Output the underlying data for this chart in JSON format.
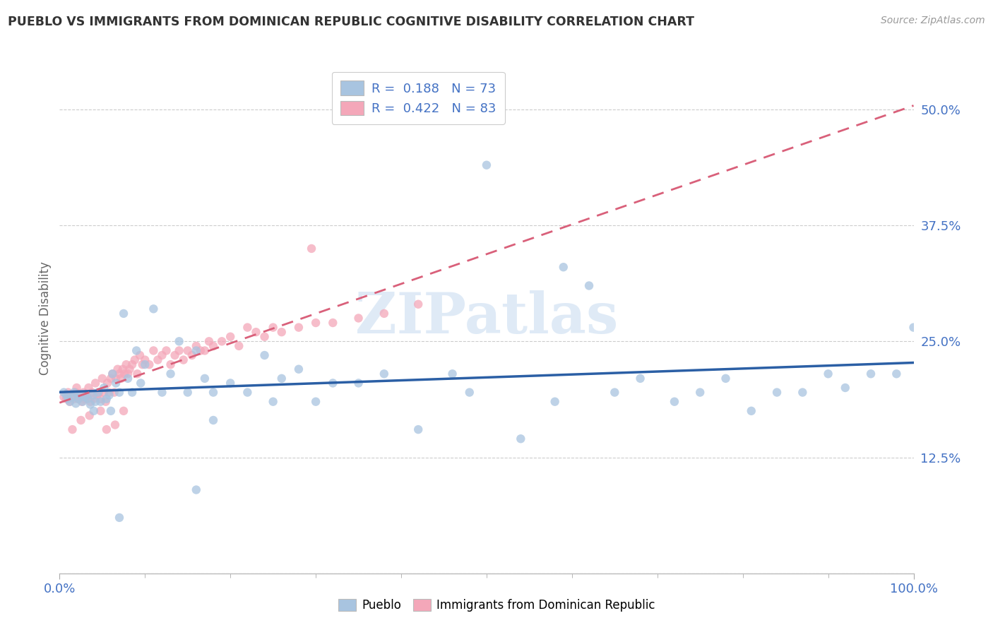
{
  "title": "PUEBLO VS IMMIGRANTS FROM DOMINICAN REPUBLIC COGNITIVE DISABILITY CORRELATION CHART",
  "source_text": "Source: ZipAtlas.com",
  "ylabel": "Cognitive Disability",
  "pueblo_R": 0.188,
  "pueblo_N": 73,
  "dr_R": 0.422,
  "dr_N": 83,
  "pueblo_color": "#a8c4e0",
  "dr_color": "#f4a7b9",
  "pueblo_line_color": "#2b5fa5",
  "dr_line_color": "#d9607a",
  "background_color": "#ffffff",
  "watermark": "ZIPatlas",
  "xlim": [
    0.0,
    1.0
  ],
  "ylim": [
    0.0,
    0.55
  ],
  "ytick_vals": [
    0.0,
    0.125,
    0.25,
    0.375,
    0.5
  ],
  "ytick_labels": [
    "",
    "12.5%",
    "25.0%",
    "37.5%",
    "50.0%"
  ],
  "pueblo_x": [
    0.005,
    0.008,
    0.01,
    0.012,
    0.015,
    0.017,
    0.019,
    0.022,
    0.024,
    0.027,
    0.03,
    0.033,
    0.036,
    0.039,
    0.042,
    0.045,
    0.048,
    0.052,
    0.055,
    0.058,
    0.062,
    0.066,
    0.07,
    0.075,
    0.08,
    0.085,
    0.09,
    0.095,
    0.1,
    0.11,
    0.12,
    0.13,
    0.14,
    0.15,
    0.16,
    0.17,
    0.18,
    0.2,
    0.22,
    0.24,
    0.26,
    0.28,
    0.3,
    0.32,
    0.35,
    0.38,
    0.42,
    0.46,
    0.5,
    0.54,
    0.58,
    0.62,
    0.65,
    0.68,
    0.72,
    0.75,
    0.78,
    0.81,
    0.84,
    0.87,
    0.9,
    0.92,
    0.95,
    0.98,
    1.0,
    0.04,
    0.06,
    0.18,
    0.25,
    0.48,
    0.07,
    0.16,
    0.59
  ],
  "pueblo_y": [
    0.195,
    0.192,
    0.188,
    0.185,
    0.19,
    0.195,
    0.183,
    0.188,
    0.192,
    0.185,
    0.19,
    0.188,
    0.182,
    0.192,
    0.185,
    0.195,
    0.185,
    0.2,
    0.188,
    0.192,
    0.215,
    0.205,
    0.195,
    0.28,
    0.21,
    0.195,
    0.24,
    0.205,
    0.225,
    0.285,
    0.195,
    0.215,
    0.25,
    0.195,
    0.24,
    0.21,
    0.195,
    0.205,
    0.195,
    0.235,
    0.21,
    0.22,
    0.185,
    0.205,
    0.205,
    0.215,
    0.155,
    0.215,
    0.44,
    0.145,
    0.185,
    0.31,
    0.195,
    0.21,
    0.185,
    0.195,
    0.21,
    0.175,
    0.195,
    0.195,
    0.215,
    0.2,
    0.215,
    0.215,
    0.265,
    0.175,
    0.175,
    0.165,
    0.185,
    0.195,
    0.06,
    0.09,
    0.33
  ],
  "dr_x": [
    0.005,
    0.008,
    0.01,
    0.012,
    0.015,
    0.017,
    0.019,
    0.02,
    0.022,
    0.024,
    0.026,
    0.028,
    0.03,
    0.032,
    0.034,
    0.036,
    0.038,
    0.04,
    0.042,
    0.044,
    0.046,
    0.048,
    0.05,
    0.052,
    0.054,
    0.056,
    0.058,
    0.06,
    0.062,
    0.064,
    0.066,
    0.068,
    0.07,
    0.072,
    0.074,
    0.076,
    0.078,
    0.08,
    0.082,
    0.085,
    0.088,
    0.091,
    0.094,
    0.097,
    0.1,
    0.105,
    0.11,
    0.115,
    0.12,
    0.125,
    0.13,
    0.135,
    0.14,
    0.145,
    0.15,
    0.155,
    0.16,
    0.165,
    0.17,
    0.175,
    0.18,
    0.19,
    0.2,
    0.21,
    0.22,
    0.23,
    0.24,
    0.25,
    0.26,
    0.28,
    0.3,
    0.32,
    0.35,
    0.38,
    0.42,
    0.015,
    0.025,
    0.035,
    0.055,
    0.048,
    0.065,
    0.075,
    0.295
  ],
  "dr_y": [
    0.19,
    0.188,
    0.195,
    0.185,
    0.192,
    0.188,
    0.195,
    0.2,
    0.188,
    0.192,
    0.185,
    0.195,
    0.188,
    0.192,
    0.2,
    0.185,
    0.195,
    0.188,
    0.205,
    0.192,
    0.195,
    0.188,
    0.21,
    0.195,
    0.185,
    0.205,
    0.195,
    0.21,
    0.215,
    0.195,
    0.21,
    0.22,
    0.215,
    0.21,
    0.22,
    0.215,
    0.225,
    0.215,
    0.22,
    0.225,
    0.23,
    0.215,
    0.235,
    0.225,
    0.23,
    0.225,
    0.24,
    0.23,
    0.235,
    0.24,
    0.225,
    0.235,
    0.24,
    0.23,
    0.24,
    0.235,
    0.245,
    0.24,
    0.24,
    0.25,
    0.245,
    0.25,
    0.255,
    0.245,
    0.265,
    0.26,
    0.255,
    0.265,
    0.26,
    0.265,
    0.27,
    0.27,
    0.275,
    0.28,
    0.29,
    0.155,
    0.165,
    0.17,
    0.155,
    0.175,
    0.16,
    0.175,
    0.35
  ]
}
